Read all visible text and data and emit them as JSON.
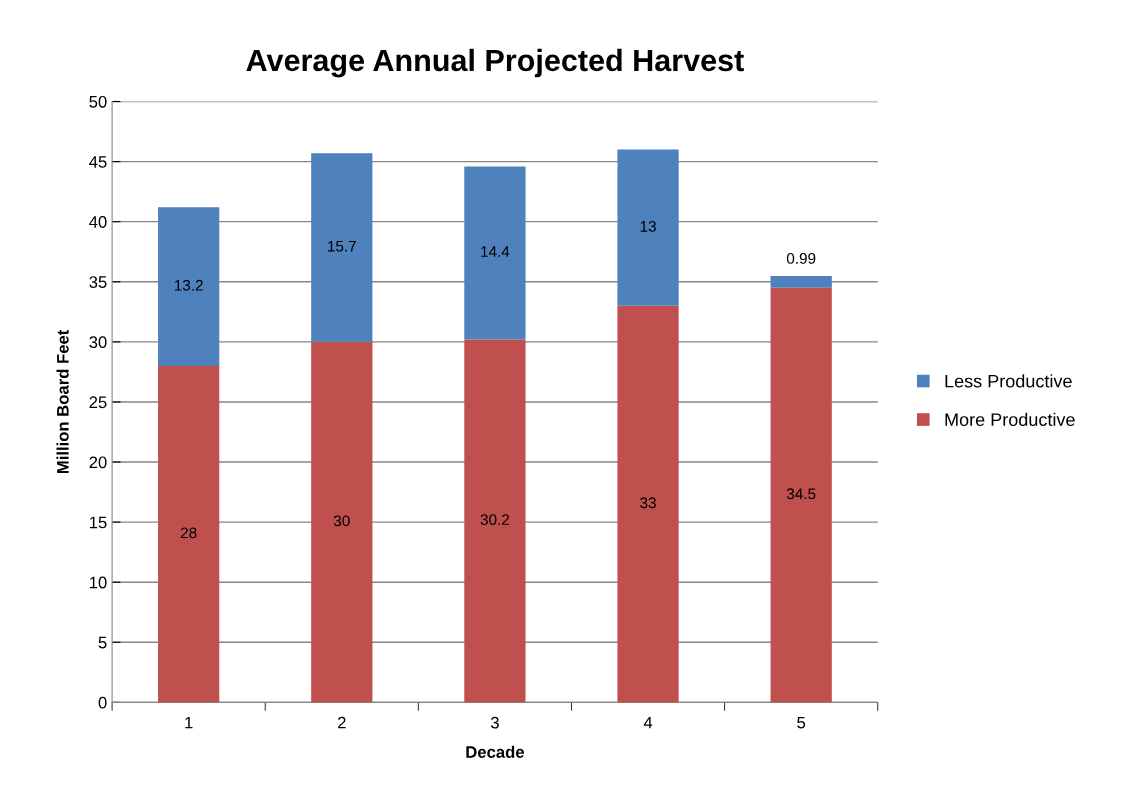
{
  "chart_data": {
    "type": "bar",
    "title": "Average Annual Projected Harvest",
    "xlabel": "Decade",
    "ylabel": "Million Board Feet",
    "categories": [
      "1",
      "2",
      "3",
      "4",
      "5"
    ],
    "series": [
      {
        "name": "More Productive",
        "color": "#c0504d",
        "values": [
          28,
          30,
          30.2,
          33,
          34.5
        ]
      },
      {
        "name": "Less Productive",
        "color": "#4f81bd",
        "values": [
          13.2,
          15.7,
          14.4,
          13,
          0.99
        ]
      }
    ],
    "stacked": true,
    "data_labels": true,
    "ylim": [
      0,
      50
    ],
    "yticks": [
      0,
      5,
      10,
      15,
      20,
      25,
      30,
      35,
      40,
      45,
      50
    ],
    "grid": "y",
    "legend": "right"
  }
}
